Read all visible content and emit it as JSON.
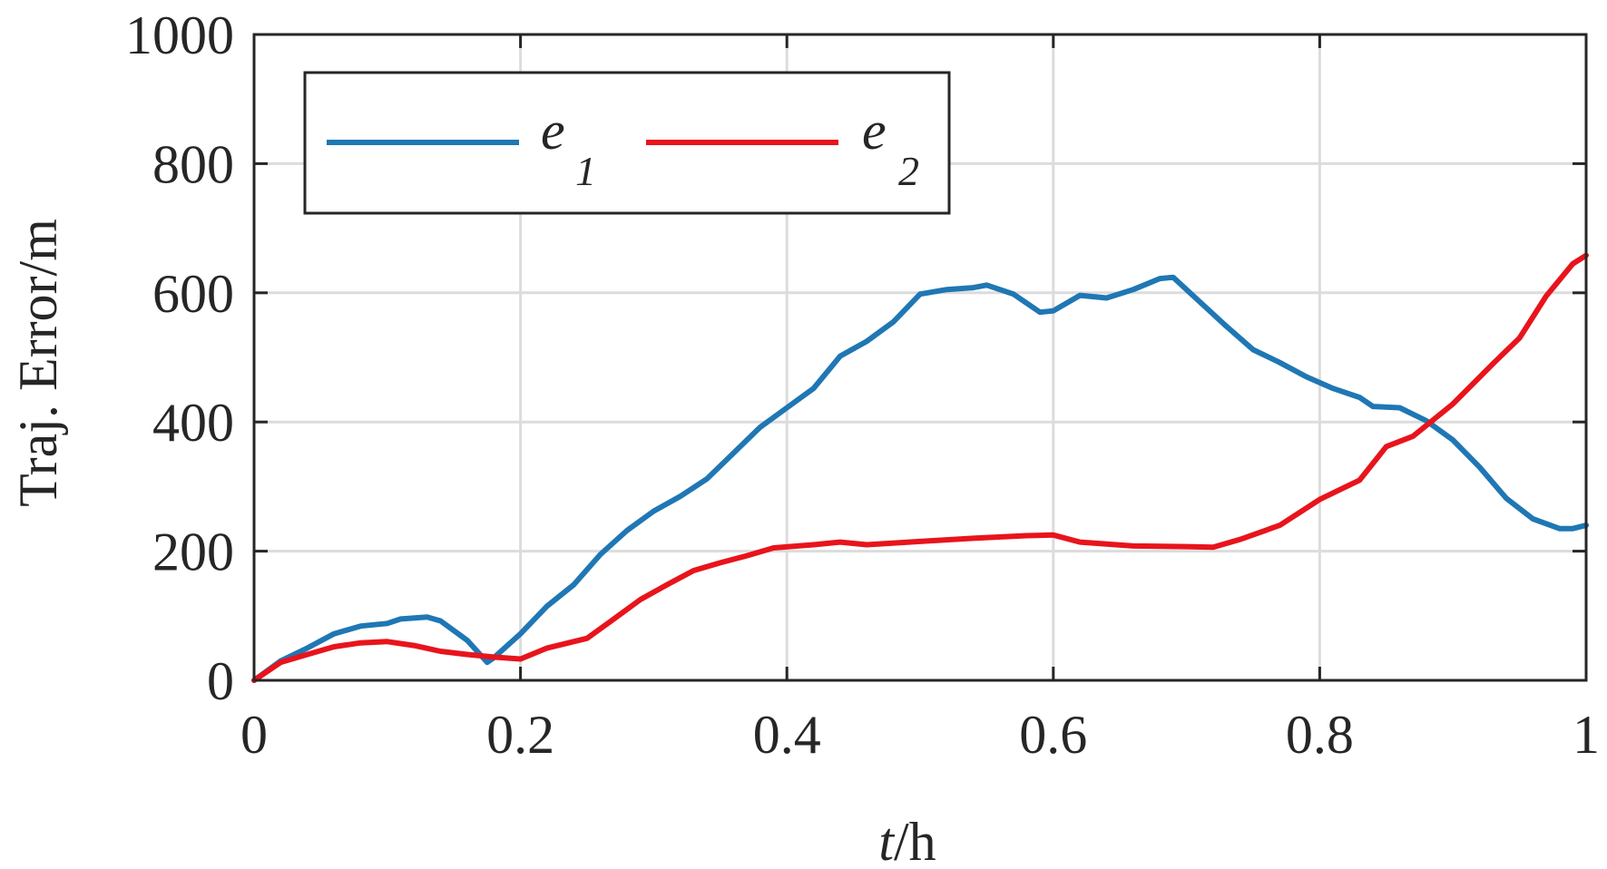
{
  "chart_data": {
    "type": "line",
    "xlabel_italic": "t",
    "xlabel_rest": "/h",
    "ylabel": "Traj. Error/m",
    "xlim": [
      0,
      1
    ],
    "ylim": [
      0,
      1000
    ],
    "grid": true,
    "legend_placement": "top-left",
    "xticks": [
      0,
      0.2,
      0.4,
      0.6,
      0.8,
      1
    ],
    "xtick_labels": [
      "0",
      "0.2",
      "0.4",
      "0.6",
      "0.8",
      "1"
    ],
    "yticks": [
      0,
      200,
      400,
      600,
      800,
      1000
    ],
    "ytick_labels": [
      "0",
      "200",
      "400",
      "600",
      "800",
      "1000"
    ],
    "series": [
      {
        "name": "e",
        "subscript": "1",
        "color": "#1f77b4",
        "points": [
          [
            0,
            0
          ],
          [
            0.02,
            30
          ],
          [
            0.04,
            50
          ],
          [
            0.06,
            72
          ],
          [
            0.08,
            84
          ],
          [
            0.1,
            88
          ],
          [
            0.11,
            95
          ],
          [
            0.13,
            98
          ],
          [
            0.14,
            92
          ],
          [
            0.16,
            62
          ],
          [
            0.175,
            28
          ],
          [
            0.18,
            35
          ],
          [
            0.2,
            72
          ],
          [
            0.22,
            115
          ],
          [
            0.24,
            148
          ],
          [
            0.26,
            195
          ],
          [
            0.28,
            232
          ],
          [
            0.3,
            262
          ],
          [
            0.32,
            285
          ],
          [
            0.34,
            312
          ],
          [
            0.36,
            352
          ],
          [
            0.38,
            392
          ],
          [
            0.4,
            422
          ],
          [
            0.42,
            452
          ],
          [
            0.44,
            502
          ],
          [
            0.46,
            525
          ],
          [
            0.48,
            555
          ],
          [
            0.5,
            598
          ],
          [
            0.52,
            605
          ],
          [
            0.54,
            608
          ],
          [
            0.55,
            612
          ],
          [
            0.57,
            598
          ],
          [
            0.59,
            570
          ],
          [
            0.6,
            572
          ],
          [
            0.62,
            596
          ],
          [
            0.64,
            592
          ],
          [
            0.66,
            605
          ],
          [
            0.68,
            622
          ],
          [
            0.69,
            624
          ],
          [
            0.71,
            586
          ],
          [
            0.73,
            548
          ],
          [
            0.75,
            512
          ],
          [
            0.77,
            492
          ],
          [
            0.79,
            470
          ],
          [
            0.81,
            452
          ],
          [
            0.83,
            438
          ],
          [
            0.84,
            424
          ],
          [
            0.86,
            422
          ],
          [
            0.88,
            402
          ],
          [
            0.9,
            372
          ],
          [
            0.92,
            330
          ],
          [
            0.94,
            282
          ],
          [
            0.96,
            250
          ],
          [
            0.98,
            235
          ],
          [
            0.99,
            235
          ],
          [
            1.0,
            240
          ]
        ]
      },
      {
        "name": "e",
        "subscript": "2",
        "color": "#e8141c",
        "points": [
          [
            0,
            0
          ],
          [
            0.02,
            28
          ],
          [
            0.04,
            40
          ],
          [
            0.06,
            52
          ],
          [
            0.08,
            58
          ],
          [
            0.1,
            60
          ],
          [
            0.12,
            54
          ],
          [
            0.14,
            45
          ],
          [
            0.16,
            40
          ],
          [
            0.18,
            36
          ],
          [
            0.2,
            33
          ],
          [
            0.22,
            50
          ],
          [
            0.25,
            65
          ],
          [
            0.27,
            95
          ],
          [
            0.29,
            125
          ],
          [
            0.31,
            148
          ],
          [
            0.33,
            170
          ],
          [
            0.35,
            182
          ],
          [
            0.37,
            193
          ],
          [
            0.39,
            205
          ],
          [
            0.42,
            210
          ],
          [
            0.44,
            214
          ],
          [
            0.46,
            210
          ],
          [
            0.5,
            215
          ],
          [
            0.54,
            220
          ],
          [
            0.58,
            224
          ],
          [
            0.6,
            225
          ],
          [
            0.62,
            214
          ],
          [
            0.66,
            208
          ],
          [
            0.7,
            207
          ],
          [
            0.72,
            206
          ],
          [
            0.74,
            218
          ],
          [
            0.77,
            240
          ],
          [
            0.8,
            280
          ],
          [
            0.83,
            310
          ],
          [
            0.85,
            362
          ],
          [
            0.87,
            378
          ],
          [
            0.9,
            428
          ],
          [
            0.93,
            490
          ],
          [
            0.95,
            530
          ],
          [
            0.97,
            595
          ],
          [
            0.99,
            645
          ],
          [
            1.0,
            658
          ]
        ]
      }
    ]
  }
}
